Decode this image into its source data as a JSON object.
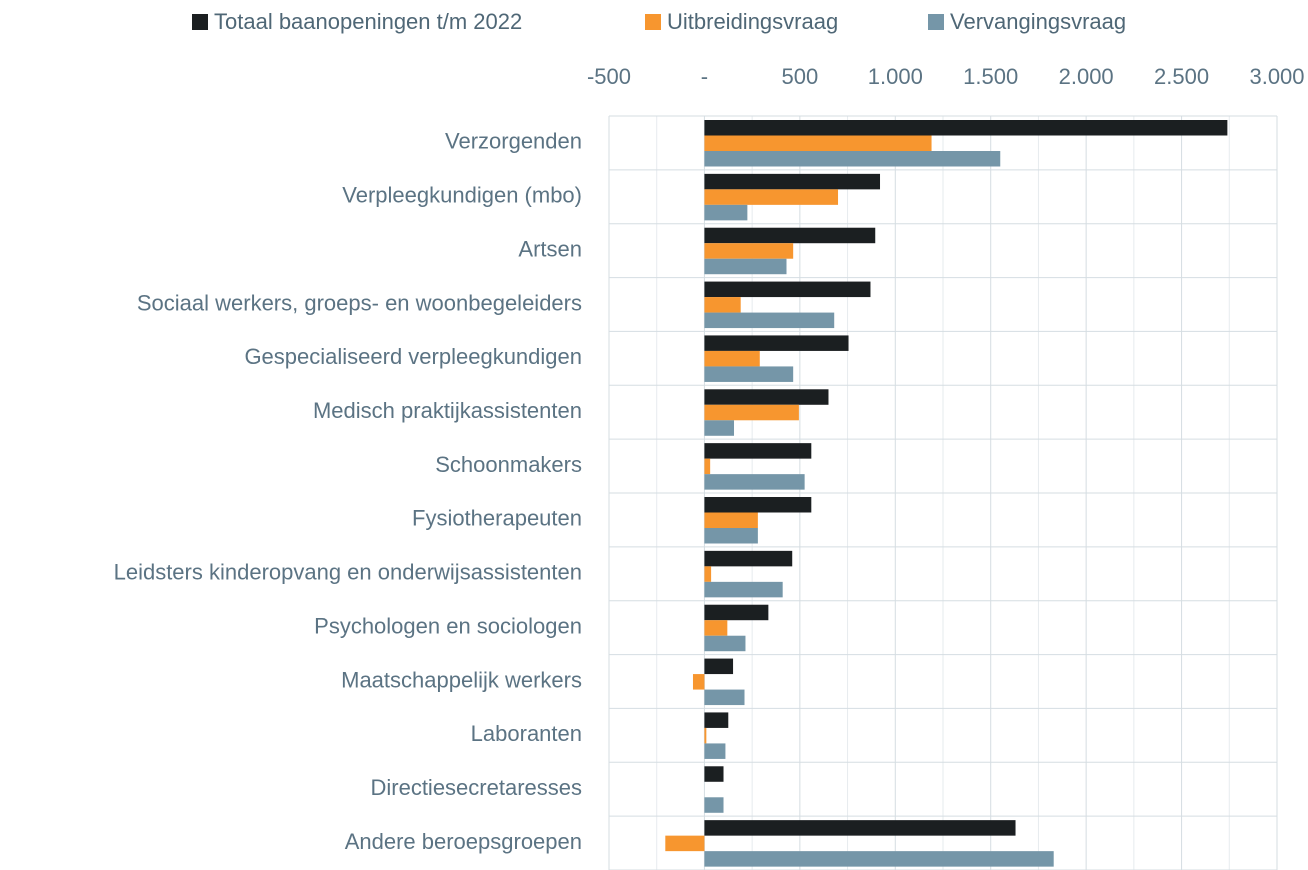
{
  "chart_data": {
    "type": "bar",
    "orientation": "horizontal",
    "categories": [
      "Verzorgenden",
      "Verpleegkundigen (mbo)",
      "Artsen",
      "Sociaal werkers, groeps- en woonbegeleiders",
      "Gespecialiseerd verpleegkundigen",
      "Medisch praktijkassistenten",
      "Schoonmakers",
      "Fysiotherapeuten",
      "Leidsters kinderopvang en onderwijsassistenten",
      "Psychologen en sociologen",
      "Maatschappelijk werkers",
      "Laboranten",
      "Directiesecretaresses",
      "Andere beroepsgroepen"
    ],
    "series": [
      {
        "name": "Totaal baanopeningen t/m 2022",
        "color": "#1b1f21",
        "values": [
          2740,
          920,
          895,
          870,
          755,
          650,
          560,
          560,
          460,
          335,
          150,
          125,
          100,
          1630
        ]
      },
      {
        "name": "Uitbreidingsvraag",
        "color": "#f7962f",
        "values": [
          1190,
          700,
          465,
          190,
          290,
          495,
          30,
          280,
          35,
          120,
          -60,
          10,
          0,
          -205
        ]
      },
      {
        "name": "Vervangingsvraag",
        "color": "#7596a8",
        "values": [
          1550,
          225,
          430,
          680,
          465,
          155,
          525,
          280,
          410,
          215,
          210,
          110,
          100,
          1830
        ]
      }
    ],
    "xlim": [
      -500,
      3000
    ],
    "xticks": [
      -500,
      {
        "value": 0,
        "label": "-"
      },
      500,
      {
        "value": 1000,
        "label": "1.000"
      },
      {
        "value": 1500,
        "label": "1.500"
      },
      {
        "value": 2000,
        "label": "2.000"
      },
      {
        "value": 2500,
        "label": "2.500"
      },
      {
        "value": 3000,
        "label": "3.000"
      }
    ],
    "grid": true,
    "legend": "top"
  }
}
